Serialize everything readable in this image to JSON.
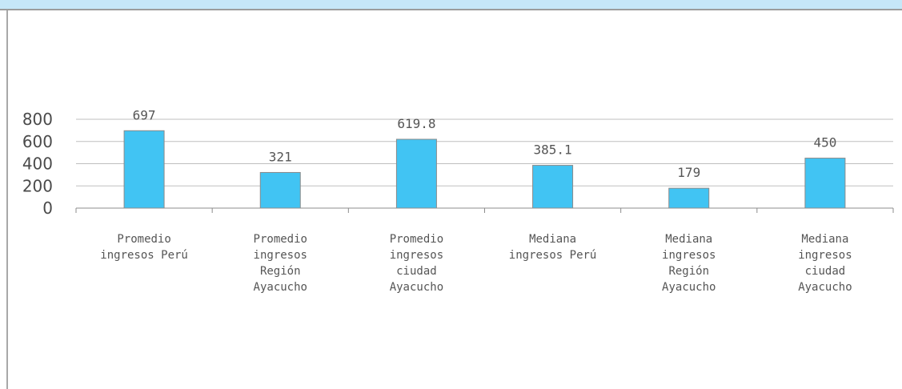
{
  "chart_data": {
    "type": "bar",
    "categories": [
      [
        "Promedio",
        "ingresos Perú"
      ],
      [
        "Promedio",
        "ingresos",
        "Región",
        "Ayacucho"
      ],
      [
        "Promedio",
        "ingresos",
        "ciudad",
        "Ayacucho"
      ],
      [
        "Mediana",
        "ingresos Perú"
      ],
      [
        "Mediana",
        "ingresos",
        "Región",
        "Ayacucho"
      ],
      [
        "Mediana",
        "ingresos",
        "ciudad",
        "Ayacucho"
      ]
    ],
    "values": [
      697,
      321,
      619.8,
      385.1,
      179,
      450
    ],
    "data_labels": [
      "697",
      "321",
      "619.8",
      "385.1",
      "179",
      "450"
    ],
    "ylim": [
      0,
      800
    ],
    "yticks": [
      "0",
      "200",
      "400",
      "600",
      "800"
    ],
    "title": "",
    "xlabel": "",
    "ylabel": "",
    "grid": true,
    "bar_color": "#41c4f3",
    "bar_edge_color": "#8a8a8a",
    "grid_color": "#bfbfbf",
    "header_color": "#c6e7f8"
  }
}
